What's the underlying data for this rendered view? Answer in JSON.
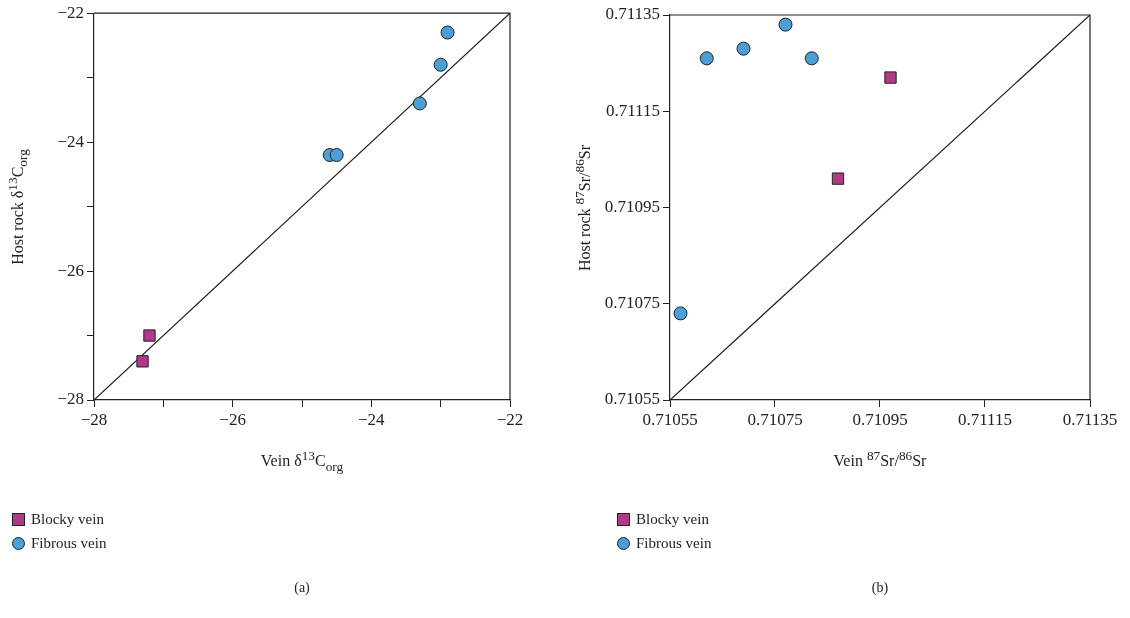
{
  "chart_data": [
    {
      "type": "scatter",
      "xlabel": "Vein δ$^{13}$C$_{org}$",
      "ylabel": "Host rock δ$^{13}$C$_{org}$",
      "xlim": [
        -28,
        -22
      ],
      "ylim": [
        -28,
        -22
      ],
      "xticks": [
        -28,
        {
          "value": -27,
          "label": null
        },
        -26,
        {
          "value": -25,
          "label": null
        },
        -24,
        {
          "value": -23,
          "label": null
        },
        -22
      ],
      "yticks": [
        -28,
        {
          "value": -27,
          "label": null
        },
        -26,
        {
          "value": -25,
          "label": null
        },
        -24,
        {
          "value": -23,
          "label": null
        },
        -22
      ],
      "grid": false,
      "legend": "bottom",
      "annotations": [
        "(a)"
      ],
      "series": [
        {
          "name": "Blocky vein",
          "color": "#b03a83",
          "marker": "square",
          "x": [
            -27.3,
            -27.2
          ],
          "values": [
            -27.4,
            -27.0
          ]
        },
        {
          "name": "Fibrous vein",
          "color": "#4b9fd6",
          "marker": "circle",
          "x": [
            -22.9,
            -23.0,
            -23.3,
            -24.6,
            -24.5
          ],
          "values": [
            -22.3,
            -22.8,
            -23.4,
            -24.2,
            -24.2
          ]
        },
        {
          "type": "line",
          "color": "#1a1a1a",
          "marker": "none",
          "x": [
            -28,
            -22
          ],
          "values": [
            -28,
            -22
          ]
        }
      ]
    },
    {
      "type": "scatter",
      "xlabel": "Vein $^{87}$Sr/$^{86}$Sr",
      "ylabel": "Host rock $^{87}$Sr/$^{86}$Sr",
      "xlim": [
        0.71055,
        0.71135
      ],
      "ylim": [
        0.71055,
        0.71135
      ],
      "xticks": [
        0.71055,
        0.71075,
        0.71095,
        0.71115,
        0.71135
      ],
      "yticks": [
        0.71055,
        0.71075,
        0.71095,
        0.71115,
        0.71135
      ],
      "grid": false,
      "legend": "bottom",
      "annotations": [
        "(b)"
      ],
      "series": [
        {
          "name": "Blocky vein",
          "color": "#b03a83",
          "marker": "square",
          "x": [
            0.71097,
            0.71087
          ],
          "values": [
            0.71122,
            0.71101
          ]
        },
        {
          "name": "Fibrous vein",
          "color": "#4b9fd6",
          "marker": "circle",
          "x": [
            0.71057,
            0.71062,
            0.71069,
            0.71077,
            0.71082
          ],
          "values": [
            0.71073,
            0.71126,
            0.71128,
            0.71133,
            0.71126
          ]
        },
        {
          "type": "line",
          "color": "#1a1a1a",
          "marker": "none",
          "x": [
            0.71055,
            0.71135
          ],
          "values": [
            0.71055,
            0.71135
          ]
        }
      ]
    }
  ]
}
